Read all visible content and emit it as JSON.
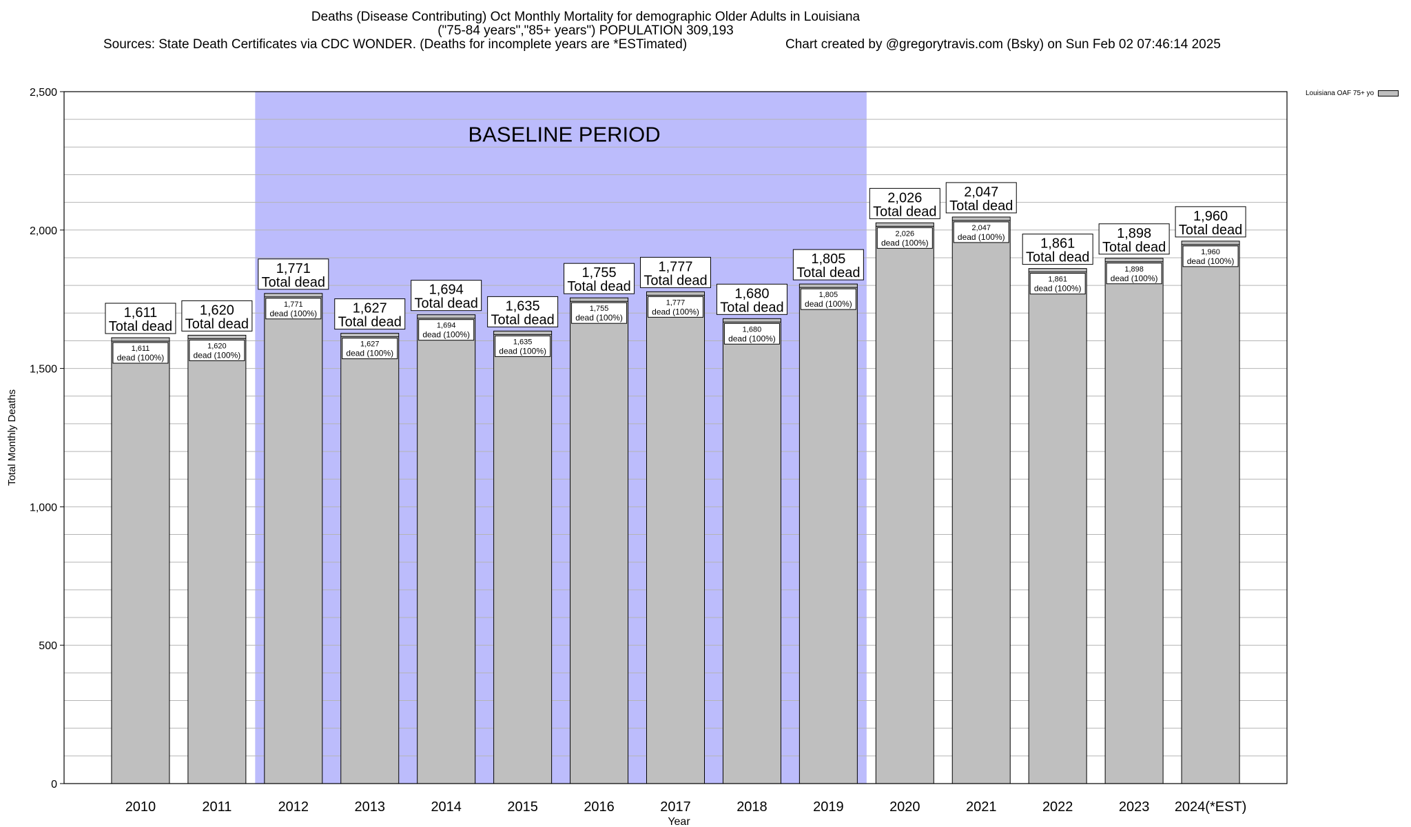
{
  "titles": {
    "line1": "Deaths (Disease Contributing) Oct Monthly Mortality for demographic Older Adults in Louisiana",
    "line2": "(\"75-84 years\",\"85+ years\") POPULATION 309,193",
    "sources": "Sources: State Death Certificates via CDC WONDER. (Deaths for incomplete years are *ESTimated)",
    "credit": "Chart created by @gregorytravis.com (Bsky) on Sun Feb 02 07:46:14 2025"
  },
  "chart_data": {
    "type": "bar",
    "categories": [
      "2010",
      "2011",
      "2012",
      "2013",
      "2014",
      "2015",
      "2016",
      "2017",
      "2018",
      "2019",
      "2020",
      "2021",
      "2022",
      "2023",
      "2024(*EST)"
    ],
    "series": [
      {
        "name": "Louisiana OAF 75+ yo",
        "values": [
          1611,
          1620,
          1771,
          1627,
          1694,
          1635,
          1755,
          1777,
          1680,
          1805,
          2026,
          2047,
          1861,
          1898,
          1960
        ]
      }
    ],
    "value_labels": [
      "1,611",
      "1,620",
      "1,771",
      "1,627",
      "1,694",
      "1,635",
      "1,755",
      "1,777",
      "1,680",
      "1,805",
      "2,026",
      "2,047",
      "1,861",
      "1,898",
      "1,960"
    ],
    "top_label_suffix": "Total dead",
    "inner_label_suffix": "dead (100%)",
    "xlabel": "Year",
    "ylabel": "Total Monthly Deaths",
    "ylim": [
      0,
      2500
    ],
    "yticks": [
      0,
      500,
      1000,
      1500,
      2000,
      2500
    ],
    "ytick_labels": [
      "0",
      "500",
      "1,000",
      "1,500",
      "2,000",
      "2,500"
    ],
    "minor_grid_step": 100,
    "grid": true,
    "legend_position": "top-right outside",
    "baseline_period": {
      "label": "BASELINE PERIOD",
      "from": "2012",
      "to": "2019",
      "color": "#bcbcfc"
    },
    "bar_color": "#bfbfbf"
  }
}
